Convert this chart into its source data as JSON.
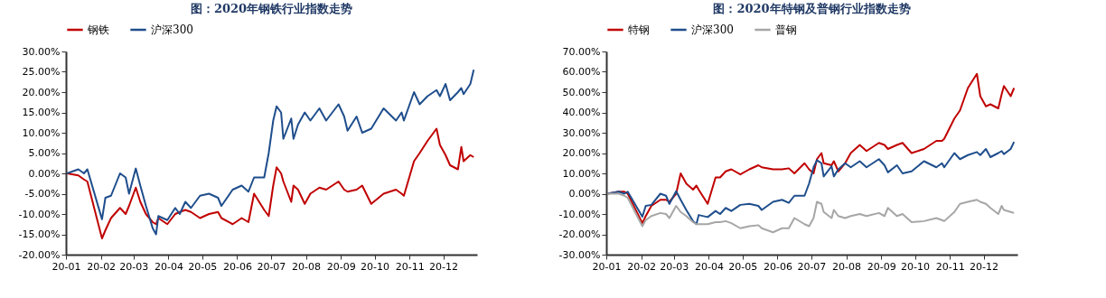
{
  "chart_data": [
    {
      "type": "line",
      "title": "图：2020年钢铁行业指数走势",
      "legend": "top",
      "grid": false,
      "x": [
        "2020-01-02",
        "2020-01-12",
        "2020-01-17",
        "2020-01-20",
        "2020-02-02",
        "2020-02-05",
        "2020-02-10",
        "2020-02-18",
        "2020-02-23",
        "2020-02-26",
        "2020-03-03",
        "2020-03-07",
        "2020-03-12",
        "2020-03-18",
        "2020-03-21",
        "2020-03-23",
        "2020-03-31",
        "2020-04-07",
        "2020-04-11",
        "2020-04-16",
        "2020-04-21",
        "2020-04-29",
        "2020-05-07",
        "2020-05-15",
        "2020-05-18",
        "2020-05-28",
        "2020-06-05",
        "2020-06-11",
        "2020-06-16",
        "2020-06-25",
        "2020-06-29",
        "2020-07-03",
        "2020-07-06",
        "2020-07-10",
        "2020-07-12",
        "2020-07-19",
        "2020-07-21",
        "2020-07-25",
        "2020-07-31",
        "2020-08-05",
        "2020-08-13",
        "2020-08-19",
        "2020-08-30",
        "2020-09-04",
        "2020-09-07",
        "2020-09-15",
        "2020-09-20",
        "2020-09-28",
        "2020-10-09",
        "2020-10-20",
        "2020-10-25",
        "2020-10-27",
        "2020-11-05",
        "2020-11-10",
        "2020-11-17",
        "2020-11-25",
        "2020-11-28",
        "2020-12-03",
        "2020-12-07",
        "2020-12-14",
        "2020-12-17",
        "2020-12-19",
        "2020-12-25",
        "2020-12-28"
      ],
      "xlim": [
        "2020-01-01",
        "2020-12-31"
      ],
      "xticks": [
        {
          "value": "2020-01-01",
          "label": "20-01"
        },
        {
          "value": "2020-02-01",
          "label": "20-02"
        },
        {
          "value": "2020-03-01",
          "label": "20-03"
        },
        {
          "value": "2020-04-01",
          "label": "20-04"
        },
        {
          "value": "2020-05-01",
          "label": "20-05"
        },
        {
          "value": "2020-06-01",
          "label": "20-06"
        },
        {
          "value": "2020-07-01",
          "label": "20-07"
        },
        {
          "value": "2020-08-01",
          "label": "20-08"
        },
        {
          "value": "2020-09-01",
          "label": "20-09"
        },
        {
          "value": "2020-10-01",
          "label": "20-10"
        },
        {
          "value": "2020-11-01",
          "label": "20-11"
        },
        {
          "value": "2020-12-01",
          "label": "20-12"
        }
      ],
      "ylim": [
        -20,
        30
      ],
      "yticks": [
        {
          "value": -20,
          "label": "-20.00%"
        },
        {
          "value": -15,
          "label": "-15.00%"
        },
        {
          "value": -10,
          "label": "-10.00%"
        },
        {
          "value": -5,
          "label": "-5.00%"
        },
        {
          "value": 0,
          "label": "0.00%"
        },
        {
          "value": 5,
          "label": "5.00%"
        },
        {
          "value": 10,
          "label": "10.00%"
        },
        {
          "value": 15,
          "label": "15.00%"
        },
        {
          "value": 20,
          "label": "20.00%"
        },
        {
          "value": 25,
          "label": "25.00%"
        },
        {
          "value": 30,
          "label": "30.00%"
        }
      ],
      "series": [
        {
          "name": "钢铁",
          "color": "#c00000",
          "values": [
            0,
            -0.5,
            -1.5,
            -2,
            -16,
            -14,
            -11,
            -8.5,
            -10,
            -8,
            -3.5,
            -7,
            -10,
            -12,
            -12.5,
            -11,
            -12.5,
            -10,
            -9.5,
            -9,
            -9.5,
            -11,
            -10,
            -9.5,
            -11,
            -12.5,
            -11,
            -12,
            -5,
            -9,
            -10.5,
            -3,
            1.5,
            0,
            -2,
            -7,
            -3,
            -4,
            -7.5,
            -5,
            -3.5,
            -4,
            -2,
            -4,
            -4.5,
            -4,
            -3,
            -7.5,
            -5,
            -4,
            -5,
            -5.5,
            3,
            5,
            8,
            11,
            7,
            4.5,
            2,
            1,
            6.5,
            3,
            4.5,
            4
          ]
        },
        {
          "name": "沪深300",
          "color": "#1f4e8c",
          "values": [
            0,
            1,
            0,
            1,
            -11.3,
            -6,
            -5.5,
            0,
            -1,
            -5,
            1.2,
            -3,
            -8,
            -13.5,
            -15,
            -10.5,
            -11.5,
            -8.5,
            -10,
            -7,
            -8.5,
            -5.5,
            -5,
            -6,
            -8,
            -4,
            -3,
            -4.5,
            -1,
            -1,
            5,
            13,
            16.5,
            15,
            8.5,
            13.5,
            8.5,
            12,
            15,
            13,
            16,
            13,
            17,
            14,
            10.5,
            14,
            10,
            11,
            16,
            13,
            15,
            13,
            20,
            17,
            19,
            20.5,
            19,
            22,
            18,
            20,
            21,
            19.5,
            22,
            25.5
          ]
        }
      ]
    },
    {
      "type": "line",
      "title": "图：2020年特钢及普钢行业指数走势",
      "legend": "top",
      "grid": false,
      "x": [
        "2020-01-02",
        "2020-01-12",
        "2020-01-17",
        "2020-01-20",
        "2020-02-02",
        "2020-02-05",
        "2020-02-10",
        "2020-02-18",
        "2020-02-23",
        "2020-02-26",
        "2020-03-03",
        "2020-03-07",
        "2020-03-12",
        "2020-03-18",
        "2020-03-21",
        "2020-03-23",
        "2020-03-31",
        "2020-04-07",
        "2020-04-11",
        "2020-04-16",
        "2020-04-21",
        "2020-04-29",
        "2020-05-07",
        "2020-05-15",
        "2020-05-18",
        "2020-05-28",
        "2020-06-05",
        "2020-06-11",
        "2020-06-16",
        "2020-06-25",
        "2020-06-29",
        "2020-07-03",
        "2020-07-06",
        "2020-07-10",
        "2020-07-12",
        "2020-07-19",
        "2020-07-21",
        "2020-07-25",
        "2020-07-31",
        "2020-08-05",
        "2020-08-13",
        "2020-08-19",
        "2020-08-30",
        "2020-09-04",
        "2020-09-07",
        "2020-09-15",
        "2020-09-20",
        "2020-09-28",
        "2020-10-09",
        "2020-10-20",
        "2020-10-25",
        "2020-10-27",
        "2020-11-05",
        "2020-11-10",
        "2020-11-17",
        "2020-11-25",
        "2020-11-28",
        "2020-12-03",
        "2020-12-07",
        "2020-12-14",
        "2020-12-17",
        "2020-12-19",
        "2020-12-25",
        "2020-12-28"
      ],
      "xlim": [
        "2020-01-01",
        "2020-12-31"
      ],
      "xticks": [
        {
          "value": "2020-01-01",
          "label": "20-01"
        },
        {
          "value": "2020-02-01",
          "label": "20-02"
        },
        {
          "value": "2020-03-01",
          "label": "20-03"
        },
        {
          "value": "2020-04-01",
          "label": "20-04"
        },
        {
          "value": "2020-05-01",
          "label": "20-05"
        },
        {
          "value": "2020-06-01",
          "label": "20-06"
        },
        {
          "value": "2020-07-01",
          "label": "20-07"
        },
        {
          "value": "2020-08-01",
          "label": "20-08"
        },
        {
          "value": "2020-09-01",
          "label": "20-09"
        },
        {
          "value": "2020-10-01",
          "label": "20-10"
        },
        {
          "value": "2020-11-01",
          "label": "20-11"
        },
        {
          "value": "2020-12-01",
          "label": "20-12"
        }
      ],
      "ylim": [
        -30,
        70
      ],
      "yticks": [
        {
          "value": -30,
          "label": "-30.00%"
        },
        {
          "value": -20,
          "label": "-20.00%"
        },
        {
          "value": -10,
          "label": "-10.00%"
        },
        {
          "value": 0,
          "label": "0.00%"
        },
        {
          "value": 10,
          "label": "10.00%"
        },
        {
          "value": 20,
          "label": "20.00%"
        },
        {
          "value": 30,
          "label": "30.00%"
        },
        {
          "value": 40,
          "label": "40.00%"
        },
        {
          "value": 50,
          "label": "50.00%"
        },
        {
          "value": 60,
          "label": "60.00%"
        },
        {
          "value": 70,
          "label": "70.00%"
        }
      ],
      "series": [
        {
          "name": "特钢",
          "color": "#c00000",
          "values": [
            0,
            1,
            1,
            0,
            -14.5,
            -11,
            -6,
            -3,
            -3,
            -4,
            0,
            10,
            5,
            2,
            4,
            2,
            -5,
            8,
            8,
            11,
            12,
            9.5,
            12,
            14,
            13,
            12,
            12,
            12.5,
            10,
            15,
            12,
            10,
            17,
            20,
            15,
            14,
            16,
            11,
            15,
            20,
            24,
            21,
            25,
            24,
            22,
            24,
            25,
            20,
            22,
            26,
            26,
            27,
            37,
            41,
            52,
            59,
            48,
            43,
            44,
            42,
            49,
            53,
            48,
            52
          ]
        },
        {
          "name": "沪深300",
          "color": "#1f4e8c",
          "values": [
            0,
            1,
            0,
            1,
            -11.3,
            -6,
            -5.5,
            0,
            -1,
            -5,
            1.2,
            -3,
            -8,
            -13.5,
            -15,
            -10.5,
            -11.5,
            -8.5,
            -10,
            -7,
            -8.5,
            -5.5,
            -5,
            -6,
            -8,
            -4,
            -3,
            -4.5,
            -1,
            -1,
            5,
            13,
            16.5,
            15,
            8.5,
            13.5,
            8.5,
            12,
            15,
            13,
            16,
            13,
            17,
            14,
            10.5,
            14,
            10,
            11,
            16,
            13,
            15,
            13,
            20,
            17,
            19,
            20.5,
            19,
            22,
            18,
            20,
            21,
            19.5,
            22,
            25.5
          ]
        },
        {
          "name": "普钢",
          "color": "#a6a6a6",
          "values": [
            0,
            0,
            -1,
            -2,
            -16,
            -13,
            -11,
            -9.5,
            -10,
            -12,
            -6,
            -9,
            -11,
            -14,
            -15,
            -15,
            -15,
            -14,
            -14,
            -13.5,
            -14.5,
            -17,
            -16,
            -15.5,
            -17,
            -19,
            -17,
            -17,
            -12,
            -15,
            -16,
            -12,
            -4,
            -5,
            -9,
            -12,
            -8,
            -11,
            -12,
            -11,
            -10,
            -11,
            -9.5,
            -11,
            -7,
            -11,
            -10,
            -14,
            -13.5,
            -12,
            -13,
            -13.5,
            -9,
            -5,
            -4,
            -3,
            -4,
            -5,
            -7,
            -10,
            -6,
            -8,
            -9,
            -9.5
          ]
        }
      ]
    }
  ]
}
